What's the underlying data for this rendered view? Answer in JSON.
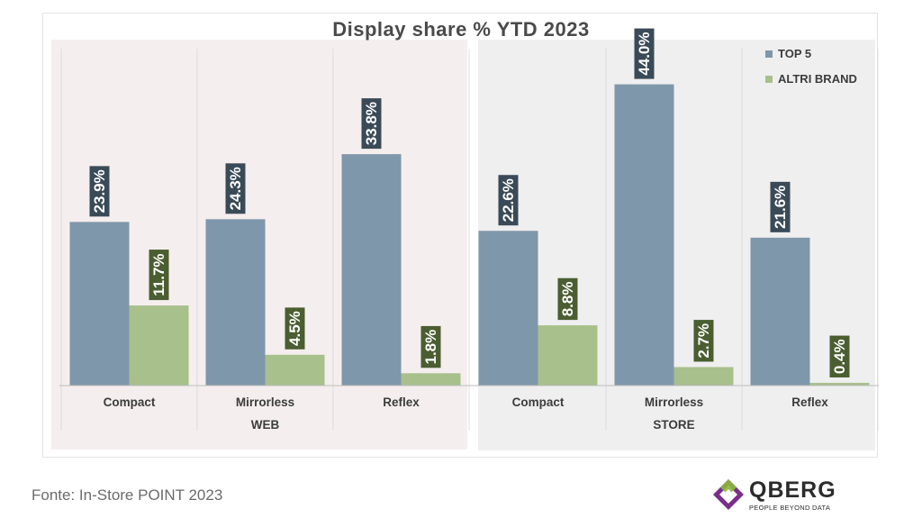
{
  "chart_data": {
    "type": "bar",
    "title": "Display share % YTD 2023",
    "unit": "%",
    "groups": [
      {
        "name": "WEB",
        "categories": [
          "Compact",
          "Mirrorless",
          "Reflex"
        ],
        "series": [
          {
            "name": "TOP 5",
            "values": [
              23.9,
              24.3,
              33.8
            ]
          },
          {
            "name": "ALTRI BRAND",
            "values": [
              11.7,
              4.5,
              1.8
            ]
          }
        ]
      },
      {
        "name": "STORE",
        "categories": [
          "Compact",
          "Mirrorless",
          "Reflex"
        ],
        "series": [
          {
            "name": "TOP 5",
            "values": [
              22.6,
              44.0,
              21.6
            ]
          },
          {
            "name": "ALTRI BRAND",
            "values": [
              8.8,
              2.7,
              0.4
            ]
          }
        ]
      }
    ],
    "legend": [
      {
        "name": "TOP 5",
        "color": "#7f97aa"
      },
      {
        "name": "ALTRI BRAND",
        "color": "#a8c08b"
      }
    ],
    "legend_position": "top-right",
    "label_colors": {
      "TOP 5": "#3a4a57",
      "ALTRI BRAND": "#4a5e31"
    },
    "panel_colors": {
      "WEB": "#f5eeee",
      "STORE": "#efefef"
    },
    "ylim": [
      0,
      50
    ],
    "grid": false
  },
  "source": "Fonte: In-Store POINT 2023",
  "logo": {
    "name": "QBERG",
    "tagline": "PEOPLE BEYOND DATA"
  }
}
